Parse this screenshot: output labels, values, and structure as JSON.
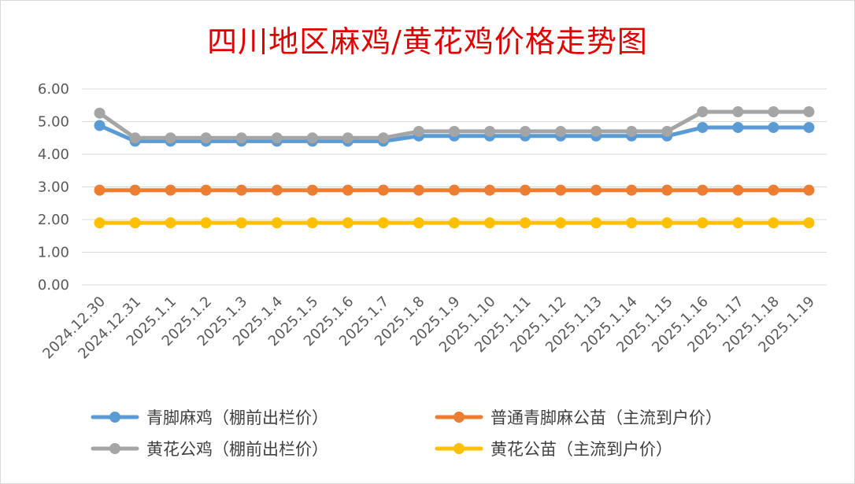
{
  "chart_data": {
    "type": "line",
    "title": "四川地区麻鸡/黄花鸡价格走势图",
    "xlabel": "",
    "ylabel": "",
    "ylim": [
      0,
      6
    ],
    "y_ticks": [
      "0.00",
      "1.00",
      "2.00",
      "3.00",
      "4.00",
      "5.00",
      "6.00"
    ],
    "grid": true,
    "legend_position": "bottom",
    "categories": [
      "2024.12.30",
      "2024.12.31",
      "2025.1.1",
      "2025.1.2",
      "2025.1.3",
      "2025.1.4",
      "2025.1.5",
      "2025.1.6",
      "2025.1.7",
      "2025.1.8",
      "2025.1.9",
      "2025.1.10",
      "2025.1.11",
      "2025.1.12",
      "2025.1.13",
      "2025.1.14",
      "2025.1.15",
      "2025.1.16",
      "2025.1.17",
      "2025.1.18",
      "2025.1.19"
    ],
    "series": [
      {
        "name": "青脚麻鸡（棚前出栏价）",
        "color": "#5b9bd5",
        "values": [
          4.88,
          4.4,
          4.4,
          4.4,
          4.4,
          4.4,
          4.4,
          4.4,
          4.4,
          4.56,
          4.56,
          4.56,
          4.56,
          4.56,
          4.56,
          4.56,
          4.56,
          4.82,
          4.82,
          4.82,
          4.82
        ]
      },
      {
        "name": "普通青脚麻公苗（主流到户价）",
        "color": "#ed7d31",
        "values": [
          2.9,
          2.9,
          2.9,
          2.9,
          2.9,
          2.9,
          2.9,
          2.9,
          2.9,
          2.9,
          2.9,
          2.9,
          2.9,
          2.9,
          2.9,
          2.9,
          2.9,
          2.9,
          2.9,
          2.9,
          2.9
        ]
      },
      {
        "name": "黄花公鸡（棚前出栏价）",
        "color": "#a5a5a5",
        "values": [
          5.26,
          4.5,
          4.5,
          4.5,
          4.5,
          4.5,
          4.5,
          4.5,
          4.5,
          4.7,
          4.7,
          4.7,
          4.7,
          4.7,
          4.7,
          4.7,
          4.7,
          5.3,
          5.3,
          5.3,
          5.3
        ]
      },
      {
        "name": "黄花公苗（主流到户价）",
        "color": "#ffc000",
        "values": [
          1.9,
          1.9,
          1.9,
          1.9,
          1.9,
          1.9,
          1.9,
          1.9,
          1.9,
          1.9,
          1.9,
          1.9,
          1.9,
          1.9,
          1.9,
          1.9,
          1.9,
          1.9,
          1.9,
          1.9,
          1.9
        ]
      }
    ],
    "legend_order": [
      0,
      1,
      2,
      3
    ]
  }
}
